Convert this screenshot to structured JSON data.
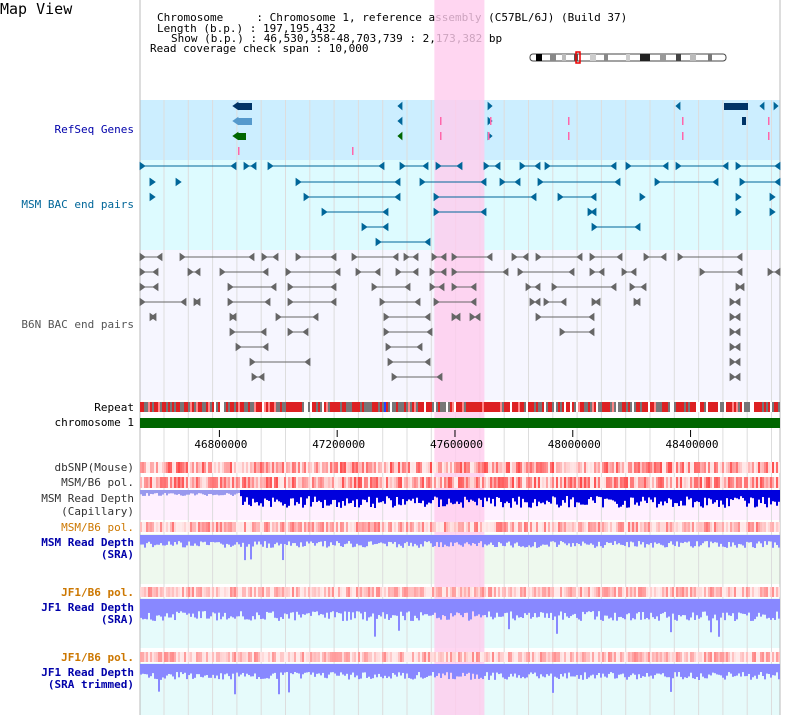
{
  "page": {
    "title": "Map View"
  },
  "info": {
    "chromosome_line": "Chromosome     : Chromosome 1, reference assembly (C57BL/6J) (Build 37)",
    "length_line": "Length (b.p.) : 197,195,432",
    "show_line": "Show (b.p.) : 46,530,358-48,703,739 : 2,173,382 bp",
    "span_line": "Read coverage check span : 10,000"
  },
  "tracks": {
    "refseq": "RefSeq Genes",
    "msm_bac": "MSM BAC end pairs",
    "b6n_bac": "B6N BAC end pairs",
    "repeat": "Repeat",
    "chromosome": "chromosome 1",
    "dbsnp": "dbSNP(Mouse)",
    "msm_b6_pol_1": "MSM/B6 pol.",
    "msm_depth_cap_1": "MSM Read Depth",
    "msm_depth_cap_2": "(Capillary)",
    "msm_b6_pol_2": "MSM/B6 pol.",
    "msm_depth_sra_1": "MSM Read Depth",
    "msm_depth_sra_2": "(SRA)",
    "jf1_b6_pol_1": "JF1/B6 pol.",
    "jf1_depth_sra_1": "JF1 Read Depth",
    "jf1_depth_sra_2": "(SRA)",
    "jf1_b6_pol_2": "JF1/B6 pol.",
    "jf1_depth_trim_1": "JF1 Read Depth",
    "jf1_depth_trim_2": "(SRA trimmed)"
  },
  "axis": {
    "ticks": [
      "46800000",
      "47200000",
      "47600000",
      "48000000",
      "48400000"
    ],
    "tick_values": [
      46800000,
      47200000,
      47600000,
      48000000,
      48400000
    ],
    "range": [
      46530358,
      48703739
    ]
  },
  "highlight": {
    "range": [
      47530000,
      47700000
    ],
    "color": "#ffccee"
  },
  "colors": {
    "refseq_bg": "#cceeff",
    "msm_bg": "#ddfbff",
    "b6n_bg": "#f6f6ff",
    "msm_feature": "#006699",
    "b6n_feature": "#666666",
    "gene_blue": "#003366",
    "chromosome_bar": "#006600",
    "depth_blue": "#0000dd",
    "depth_light": "#8888ff",
    "orange_label": "#cc7700",
    "blue_label": "#0000aa"
  }
}
